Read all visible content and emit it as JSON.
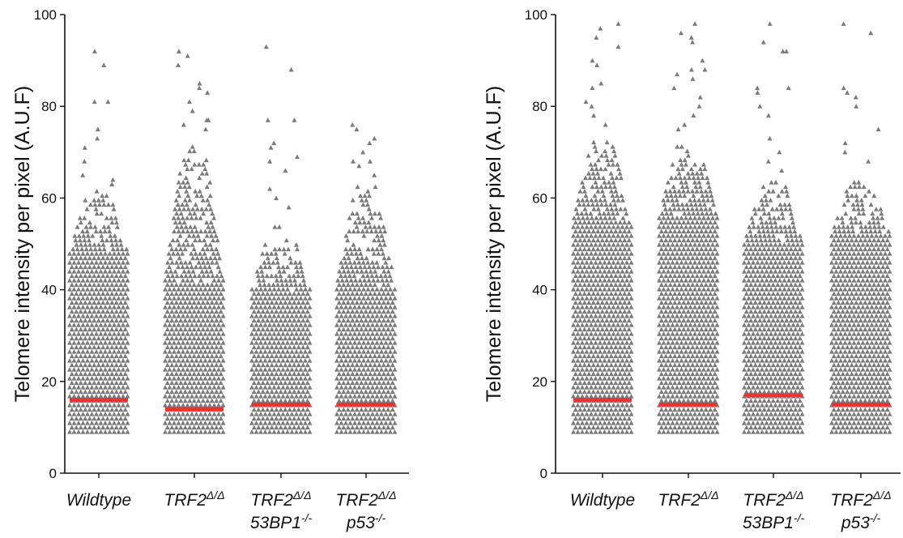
{
  "colors": {
    "points": "#7a7a7a",
    "median": "#ff2a2a",
    "axis": "#111111"
  },
  "chart_data": [
    {
      "type": "scatter",
      "title": "",
      "ylabel": "Telomere intensity per pixel (A.U.F)",
      "ylim": [
        0,
        100
      ],
      "yticks": [
        "0",
        "20",
        "40",
        "60",
        "80",
        "100"
      ],
      "categories": [
        {
          "main": "Wildtype",
          "sup": "",
          "line2": "",
          "sup2": ""
        },
        {
          "main": "TRF2",
          "sup": "Δ/Δ",
          "line2": "",
          "sup2": ""
        },
        {
          "main": "TRF2",
          "sup": "Δ/Δ",
          "line2": "53BP1",
          "sup2": "-/-"
        },
        {
          "main": "TRF2",
          "sup": "Δ/Δ",
          "line2": "p53",
          "sup2": "-/-"
        }
      ],
      "series": [
        {
          "median": 16,
          "dense_max": 48,
          "mid_max": 62,
          "outliers": [
            92,
            89,
            81,
            81,
            75,
            73,
            71,
            68,
            65,
            64,
            63
          ]
        },
        {
          "median": 14,
          "dense_max": 42,
          "mid_max": 72,
          "outliers": [
            92,
            91,
            89,
            85,
            84,
            83,
            81,
            79,
            77,
            77,
            76,
            75
          ]
        },
        {
          "median": 15,
          "dense_max": 40,
          "mid_max": 54,
          "outliers": [
            93,
            88,
            77,
            77,
            72,
            71,
            69,
            68,
            66,
            62,
            60,
            58
          ]
        },
        {
          "median": 15,
          "dense_max": 41,
          "mid_max": 63,
          "outliers": [
            76,
            75,
            73,
            72,
            70,
            68,
            68,
            67,
            65
          ]
        }
      ]
    },
    {
      "type": "scatter",
      "title": "",
      "ylabel": "Telomere intensity per pixel (A.U.F)",
      "ylim": [
        0,
        100
      ],
      "yticks": [
        "0",
        "20",
        "40",
        "60",
        "80",
        "100"
      ],
      "categories": [
        {
          "main": "Wildtype",
          "sup": "",
          "line2": "",
          "sup2": ""
        },
        {
          "main": "TRF2",
          "sup": "Δ/Δ",
          "line2": "",
          "sup2": ""
        },
        {
          "main": "TRF2",
          "sup": "Δ/Δ",
          "line2": "53BP1",
          "sup2": "-/-"
        },
        {
          "main": "TRF2",
          "sup": "Δ/Δ",
          "line2": "p53",
          "sup2": "-/-"
        }
      ],
      "series": [
        {
          "median": 16,
          "dense_max": 55,
          "mid_max": 73,
          "outliers": [
            98,
            97,
            95,
            93,
            90,
            89,
            85,
            84,
            81,
            80,
            78,
            76
          ]
        },
        {
          "median": 15,
          "dense_max": 56,
          "mid_max": 72,
          "outliers": [
            98,
            96,
            95,
            94,
            90,
            88,
            88,
            87,
            86,
            84,
            82,
            80,
            78,
            76,
            75
          ]
        },
        {
          "median": 17,
          "dense_max": 50,
          "mid_max": 64,
          "outliers": [
            98,
            94,
            92,
            92,
            84,
            84,
            83,
            80,
            78,
            73,
            70,
            68,
            66
          ]
        },
        {
          "median": 15,
          "dense_max": 52,
          "mid_max": 64,
          "outliers": [
            98,
            96,
            84,
            83,
            82,
            80,
            75,
            72,
            70,
            68
          ]
        }
      ]
    }
  ]
}
